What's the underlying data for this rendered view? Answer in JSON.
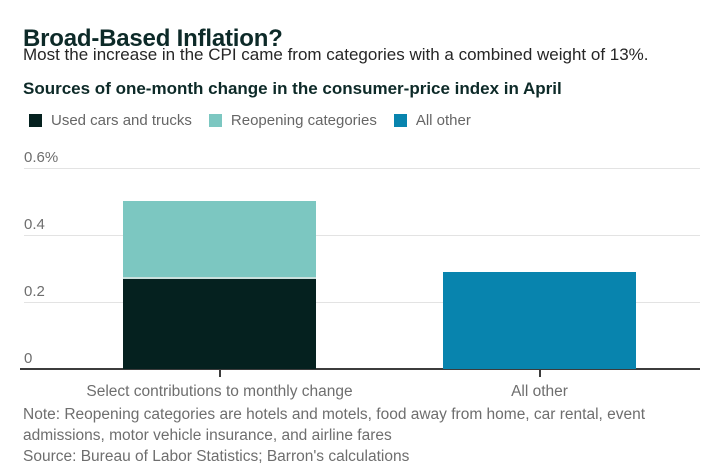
{
  "header": {
    "title": "Broad-Based Inflation?",
    "subtitle": "Most the increase in the CPI came from categories with a combined weight of 13%.",
    "chart_title": "Sources of one-month change in the consumer-price index in April"
  },
  "legend": [
    {
      "label": "Used cars and trucks",
      "color": "#05211f"
    },
    {
      "label": "Reopening categories",
      "color": "#7cc7c1"
    },
    {
      "label": "All other",
      "color": "#0884ae"
    }
  ],
  "chart_data": {
    "type": "bar",
    "stacked": true,
    "title": "Sources of one-month change in the consumer-price index in April",
    "categories": [
      "Select contributions to monthly change",
      "All other"
    ],
    "series": [
      {
        "name": "Used cars and trucks",
        "color": "#05211f",
        "values": [
          0.27,
          0
        ]
      },
      {
        "name": "Reopening categories",
        "color": "#7cc7c1",
        "values": [
          0.23,
          0
        ]
      },
      {
        "name": "All other",
        "color": "#0884ae",
        "values": [
          0,
          0.29
        ]
      }
    ],
    "xlabel": "",
    "ylabel": "",
    "ylim": [
      0,
      0.6
    ],
    "yticks": [
      {
        "value": 0,
        "label": "0"
      },
      {
        "value": 0.2,
        "label": "0.2"
      },
      {
        "value": 0.4,
        "label": "0.4"
      },
      {
        "value": 0.6,
        "label": "0.6%"
      }
    ],
    "grid": true,
    "legend_position": "top",
    "segment_separator_color": "#c9e0dd"
  },
  "footer": {
    "note": "Note: Reopening categories are hotels and motels, food away from home, car rental, event admissions, motor vehicle insurance, and airline fares",
    "source": "Source: Bureau of Labor Statistics; Barron's calculations"
  },
  "colors": {
    "title_text": "#0d2a28",
    "body_text": "#262626",
    "muted_text": "#6e6e6e",
    "grid": "#e3e3e3",
    "axis": "#3c3c3c"
  }
}
